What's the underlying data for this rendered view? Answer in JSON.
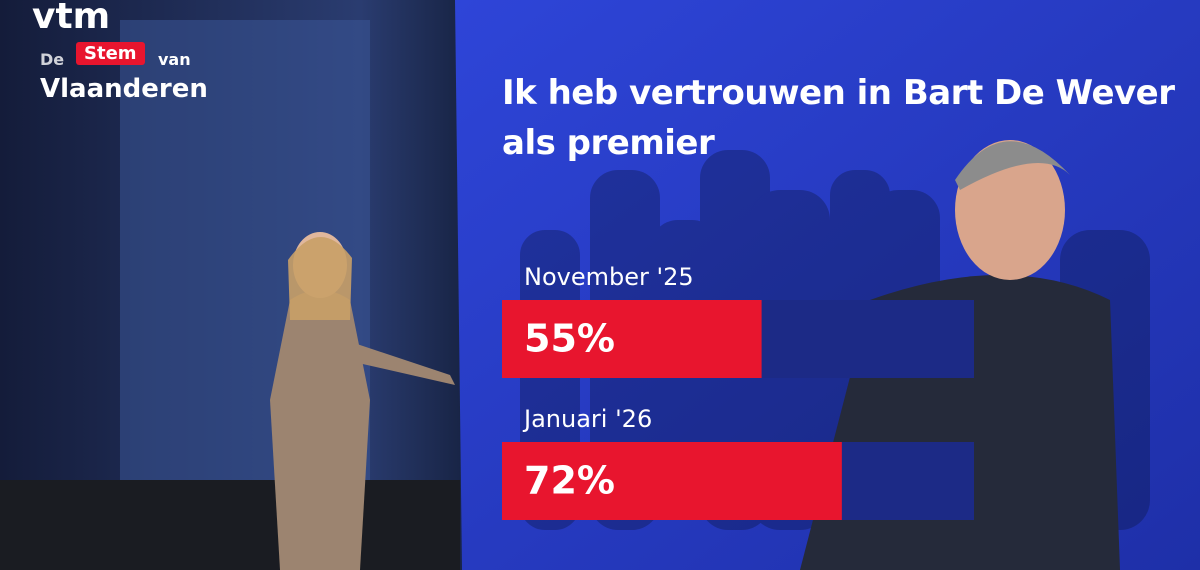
{
  "logo": {
    "brand": "vtm",
    "words": [
      "De",
      "Stem",
      "van",
      "Vlaanderen"
    ]
  },
  "chart_data": {
    "type": "bar",
    "orientation": "horizontal",
    "title": "Ik heb vertrouwen in Bart De Wever als premier",
    "categories": [
      "November '25",
      "Januari '26"
    ],
    "values": [
      55,
      72
    ],
    "value_labels": [
      "55%",
      "72%"
    ],
    "xlim": [
      0,
      100
    ],
    "color": "#e8152e",
    "track_color": "#1c2a86"
  }
}
